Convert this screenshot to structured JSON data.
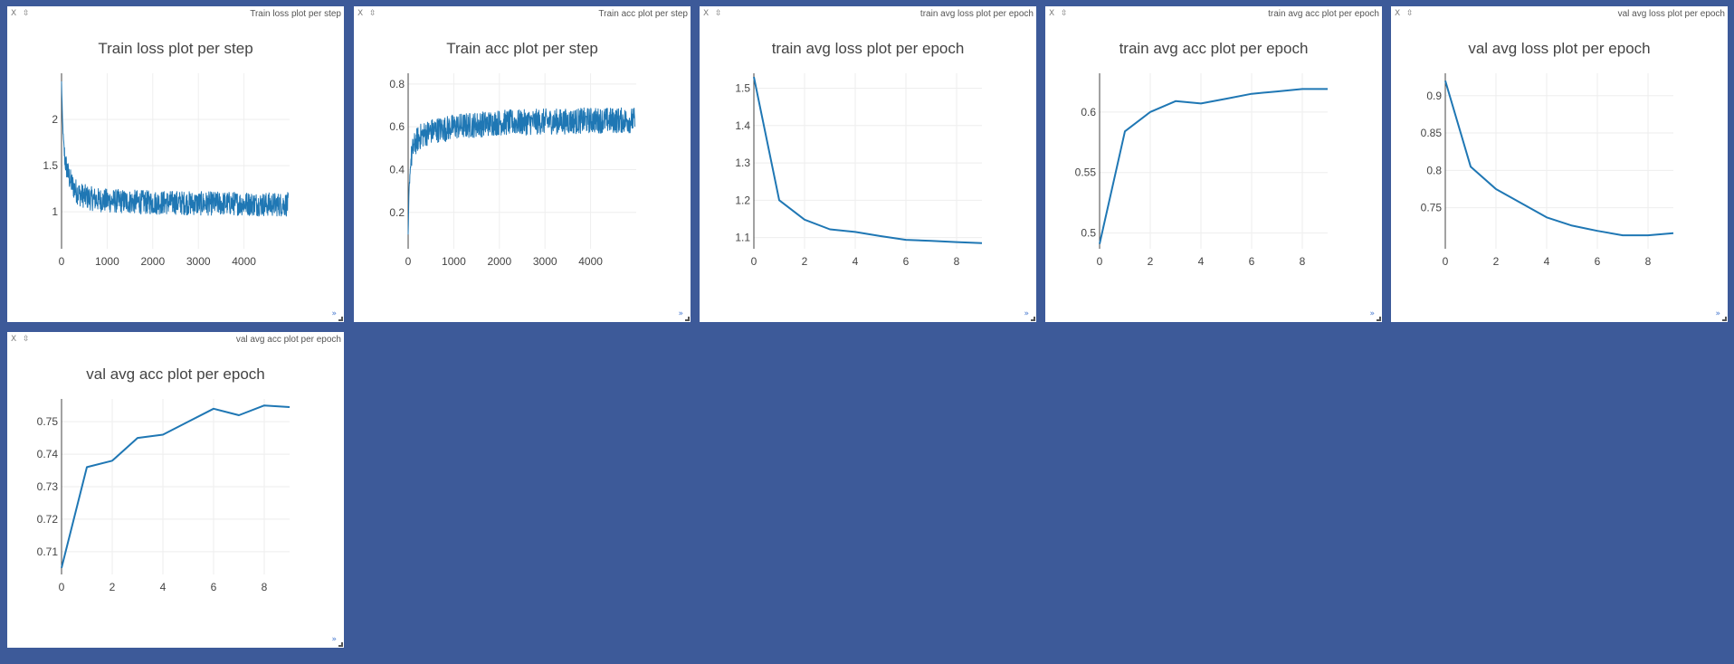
{
  "panes": [
    {
      "header": "Train loss plot per step",
      "close": "X",
      "pin": "⇳",
      "expand": "»",
      "chart": {
        "type": "line",
        "title": "Train loss plot per step",
        "noisy": true,
        "xlim": [
          0,
          5000
        ],
        "ylim": [
          0.6,
          2.5
        ],
        "xticks": [
          0,
          1000,
          2000,
          3000,
          4000
        ],
        "yticks": [
          1,
          1.5,
          2
        ],
        "x": [
          0,
          10,
          20,
          40,
          60,
          80,
          100,
          150,
          200,
          250,
          300,
          350,
          400,
          500,
          600,
          800,
          1000,
          1500,
          2000,
          2500,
          3000,
          3500,
          4000,
          4500,
          4970
        ],
        "y_mean": [
          2.4,
          2.2,
          2.0,
          1.8,
          1.65,
          1.55,
          1.5,
          1.4,
          1.33,
          1.28,
          1.24,
          1.21,
          1.19,
          1.17,
          1.15,
          1.13,
          1.12,
          1.11,
          1.1,
          1.1,
          1.09,
          1.09,
          1.09,
          1.08,
          1.08
        ],
        "noise": 0.13
      }
    },
    {
      "header": "Train acc plot per step",
      "close": "X",
      "pin": "⇳",
      "expand": "»",
      "chart": {
        "type": "line",
        "title": "Train acc plot per step",
        "noisy": true,
        "xlim": [
          0,
          5000
        ],
        "ylim": [
          0.03,
          0.85
        ],
        "xticks": [
          0,
          1000,
          2000,
          3000,
          4000
        ],
        "yticks": [
          0.2,
          0.4,
          0.6,
          0.8
        ],
        "x": [
          0,
          10,
          20,
          40,
          60,
          100,
          150,
          200,
          300,
          400,
          600,
          800,
          1000,
          1500,
          2000,
          2500,
          3000,
          3500,
          4000,
          4500,
          4970
        ],
        "y_mean": [
          0.08,
          0.2,
          0.3,
          0.38,
          0.44,
          0.49,
          0.52,
          0.54,
          0.56,
          0.57,
          0.585,
          0.59,
          0.6,
          0.61,
          0.62,
          0.62,
          0.625,
          0.625,
          0.63,
          0.63,
          0.63
        ],
        "noise": 0.06
      }
    },
    {
      "header": "train avg loss plot per epoch",
      "close": "X",
      "pin": "⇳",
      "expand": "»",
      "chart": {
        "type": "line",
        "title": "train avg loss plot per epoch",
        "noisy": false,
        "xlim": [
          0,
          9
        ],
        "ylim": [
          1.07,
          1.54
        ],
        "xticks": [
          0,
          2,
          4,
          6,
          8
        ],
        "yticks": [
          1.1,
          1.2,
          1.3,
          1.4,
          1.5
        ],
        "x": [
          0,
          1,
          2,
          3,
          4,
          5,
          6,
          7,
          8,
          9
        ],
        "y": [
          1.53,
          1.2,
          1.148,
          1.122,
          1.115,
          1.104,
          1.094,
          1.091,
          1.088,
          1.085
        ]
      }
    },
    {
      "header": "train avg acc plot per epoch",
      "close": "X",
      "pin": "⇳",
      "expand": "»",
      "chart": {
        "type": "line",
        "title": "train avg acc plot per epoch",
        "noisy": false,
        "xlim": [
          0,
          9
        ],
        "ylim": [
          0.487,
          0.632
        ],
        "xticks": [
          0,
          2,
          4,
          6,
          8
        ],
        "yticks": [
          0.5,
          0.55,
          0.6
        ],
        "x": [
          0,
          1,
          2,
          3,
          4,
          5,
          6,
          7,
          8,
          9
        ],
        "y": [
          0.491,
          0.584,
          0.6,
          0.609,
          0.607,
          0.611,
          0.615,
          0.617,
          0.619,
          0.619
        ]
      }
    },
    {
      "header": "val avg loss plot per epoch",
      "close": "X",
      "pin": "⇳",
      "expand": "»",
      "chart": {
        "type": "line",
        "title": "val avg loss plot per epoch",
        "noisy": false,
        "xlim": [
          0,
          9
        ],
        "ylim": [
          0.695,
          0.93
        ],
        "xticks": [
          0,
          2,
          4,
          6,
          8
        ],
        "yticks": [
          0.75,
          0.8,
          0.85,
          0.9
        ],
        "x": [
          0,
          1,
          2,
          3,
          4,
          5,
          6,
          7,
          8,
          9
        ],
        "y": [
          0.92,
          0.805,
          0.775,
          0.756,
          0.737,
          0.726,
          0.719,
          0.713,
          0.713,
          0.716
        ]
      }
    },
    {
      "header": "val avg acc plot per epoch",
      "close": "X",
      "pin": "⇳",
      "expand": "»",
      "chart": {
        "type": "line",
        "title": "val avg acc plot per epoch",
        "noisy": false,
        "xlim": [
          0,
          9
        ],
        "ylim": [
          0.703,
          0.757
        ],
        "xticks": [
          0,
          2,
          4,
          6,
          8
        ],
        "yticks": [
          0.71,
          0.72,
          0.73,
          0.74,
          0.75
        ],
        "x": [
          0,
          1,
          2,
          3,
          4,
          5,
          6,
          7,
          8,
          9
        ],
        "y": [
          0.705,
          0.736,
          0.738,
          0.745,
          0.746,
          0.75,
          0.754,
          0.752,
          0.755,
          0.7545
        ]
      }
    }
  ],
  "chart_data": [
    {
      "type": "line",
      "title": "Train loss plot per step",
      "xlim": [
        0,
        5000
      ],
      "xticks": [
        0,
        1000,
        2000,
        3000,
        4000
      ],
      "yticks": [
        1,
        1.5,
        2
      ],
      "x": [
        0,
        100,
        200,
        400,
        1000,
        2000,
        3000,
        4000,
        4970
      ],
      "y": [
        2.4,
        1.5,
        1.33,
        1.19,
        1.12,
        1.1,
        1.09,
        1.09,
        1.08
      ]
    },
    {
      "type": "line",
      "title": "Train acc plot per step",
      "xlim": [
        0,
        5000
      ],
      "xticks": [
        0,
        1000,
        2000,
        3000,
        4000
      ],
      "yticks": [
        0.2,
        0.4,
        0.6,
        0.8
      ],
      "x": [
        0,
        100,
        200,
        400,
        1000,
        2000,
        3000,
        4000,
        4970
      ],
      "y": [
        0.08,
        0.49,
        0.54,
        0.57,
        0.6,
        0.62,
        0.625,
        0.63,
        0.63
      ]
    },
    {
      "type": "line",
      "title": "train avg loss plot per epoch",
      "xticks": [
        0,
        2,
        4,
        6,
        8
      ],
      "yticks": [
        1.1,
        1.2,
        1.3,
        1.4,
        1.5
      ],
      "x": [
        0,
        1,
        2,
        3,
        4,
        5,
        6,
        7,
        8,
        9
      ],
      "y": [
        1.53,
        1.2,
        1.148,
        1.122,
        1.115,
        1.104,
        1.094,
        1.091,
        1.088,
        1.085
      ]
    },
    {
      "type": "line",
      "title": "train avg acc plot per epoch",
      "xticks": [
        0,
        2,
        4,
        6,
        8
      ],
      "yticks": [
        0.5,
        0.55,
        0.6
      ],
      "x": [
        0,
        1,
        2,
        3,
        4,
        5,
        6,
        7,
        8,
        9
      ],
      "y": [
        0.491,
        0.584,
        0.6,
        0.609,
        0.607,
        0.611,
        0.615,
        0.617,
        0.619,
        0.619
      ]
    },
    {
      "type": "line",
      "title": "val avg loss plot per epoch",
      "xticks": [
        0,
        2,
        4,
        6,
        8
      ],
      "yticks": [
        0.75,
        0.8,
        0.85,
        0.9
      ],
      "x": [
        0,
        1,
        2,
        3,
        4,
        5,
        6,
        7,
        8,
        9
      ],
      "y": [
        0.92,
        0.805,
        0.775,
        0.756,
        0.737,
        0.726,
        0.719,
        0.713,
        0.713,
        0.716
      ]
    },
    {
      "type": "line",
      "title": "val avg acc plot per epoch",
      "xticks": [
        0,
        2,
        4,
        6,
        8
      ],
      "yticks": [
        0.71,
        0.72,
        0.73,
        0.74,
        0.75
      ],
      "x": [
        0,
        1,
        2,
        3,
        4,
        5,
        6,
        7,
        8,
        9
      ],
      "y": [
        0.705,
        0.736,
        0.738,
        0.745,
        0.746,
        0.75,
        0.754,
        0.752,
        0.755,
        0.7545
      ]
    }
  ],
  "colors": {
    "background": "#3d5a99",
    "series": "#1f77b4",
    "grid": "#eeeeee"
  }
}
